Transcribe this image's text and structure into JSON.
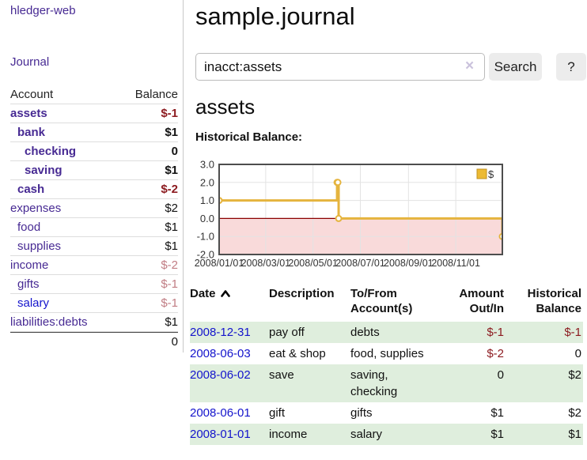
{
  "colors": {
    "purple": "#472a93",
    "blue": "#1414cc",
    "neg-strong": "#8c1a1f",
    "neg-muted": "#c17d84",
    "row-green": "#dfeedd",
    "divider": "#c8c8c8",
    "rowline": "#dddddd"
  },
  "sidebar": {
    "brand": "hledger-web",
    "nav": {
      "journal": "Journal"
    },
    "accounts": {
      "headers": {
        "account": "Account",
        "balance": "Balance"
      },
      "rows": [
        {
          "name": "assets",
          "depth": 0,
          "bold": true,
          "balance": "$-1",
          "balance_class": "neg-strong",
          "link": "purple"
        },
        {
          "name": "bank",
          "depth": 1,
          "bold": true,
          "balance": "$1",
          "balance_class": "",
          "link": "purple"
        },
        {
          "name": "checking",
          "depth": 2,
          "bold": true,
          "balance": "0",
          "balance_class": "",
          "link": "purple"
        },
        {
          "name": "saving",
          "depth": 2,
          "bold": true,
          "balance": "$1",
          "balance_class": "",
          "link": "purple"
        },
        {
          "name": "cash",
          "depth": 1,
          "bold": true,
          "balance": "$-2",
          "balance_class": "neg-strong",
          "link": "purple"
        },
        {
          "name": "expenses",
          "depth": 0,
          "bold": false,
          "balance": "$2",
          "balance_class": "",
          "link": "purple"
        },
        {
          "name": "food",
          "depth": 1,
          "bold": false,
          "balance": "$1",
          "balance_class": "",
          "link": "purple"
        },
        {
          "name": "supplies",
          "depth": 1,
          "bold": false,
          "balance": "$1",
          "balance_class": "",
          "link": "purple"
        },
        {
          "name": "income",
          "depth": 0,
          "bold": false,
          "balance": "$-2",
          "balance_class": "neg-muted",
          "link": "purple"
        },
        {
          "name": "gifts",
          "depth": 1,
          "bold": false,
          "balance": "$-1",
          "balance_class": "neg-muted",
          "link": "purple"
        },
        {
          "name": "salary",
          "depth": 1,
          "bold": false,
          "balance": "$-1",
          "balance_class": "neg-muted",
          "link": "blue"
        },
        {
          "name": "liabilities:debts",
          "depth": 0,
          "bold": false,
          "balance": "$1",
          "balance_class": "",
          "link": "purple"
        }
      ],
      "total": "0"
    }
  },
  "main": {
    "title": "sample.journal",
    "search": {
      "value": "inacct:assets",
      "clear_icon": "×",
      "button": "Search",
      "help_button": "?"
    },
    "account_heading": "assets",
    "chart_heading": "Historical Balance:",
    "register": {
      "headers": {
        "date": "Date",
        "description": "Description",
        "accounts": "To/From Account(s)",
        "amount": "Amount Out/In",
        "balance": "Historical Balance"
      },
      "sort": "ascending",
      "rows": [
        {
          "date": "2008-12-31",
          "description": "pay off",
          "accounts": "debts",
          "amount": "$-1",
          "amount_negative": true,
          "balance": "$-1",
          "balance_negative": true,
          "highlighted": true
        },
        {
          "date": "2008-06-03",
          "description": "eat & shop",
          "accounts": "food, supplies",
          "amount": "$-2",
          "amount_negative": true,
          "balance": "0",
          "balance_negative": false,
          "highlighted": false
        },
        {
          "date": "2008-06-02",
          "description": "save",
          "accounts": "saving, checking",
          "amount": "0",
          "amount_negative": false,
          "balance": "$2",
          "balance_negative": false,
          "highlighted": true
        },
        {
          "date": "2008-06-01",
          "description": "gift",
          "accounts": "gifts",
          "amount": "$1",
          "amount_negative": false,
          "balance": "$2",
          "balance_negative": false,
          "highlighted": false
        },
        {
          "date": "2008-01-01",
          "description": "income",
          "accounts": "salary",
          "amount": "$1",
          "amount_negative": false,
          "balance": "$1",
          "balance_negative": false,
          "highlighted": true
        }
      ]
    }
  },
  "chart_data": {
    "type": "line",
    "title": "Historical Balance:",
    "step": true,
    "series": [
      {
        "name": "$",
        "points": [
          [
            "2008-01-01",
            1
          ],
          [
            "2008-06-01",
            2
          ],
          [
            "2008-06-02",
            2
          ],
          [
            "2008-06-03",
            0
          ],
          [
            "2008-12-31",
            -1
          ]
        ]
      }
    ],
    "x_range": [
      "2008-01-01",
      "2008-12-31"
    ],
    "ylim": [
      -2,
      3
    ],
    "y_ticks": [
      3.0,
      2.0,
      1.0,
      0.0,
      -1.0,
      -2.0
    ],
    "x_ticks": [
      {
        "pos": "2008-01-01",
        "label": "2008/01/01"
      },
      {
        "pos": "2008-03-01",
        "label": "2008/03/01"
      },
      {
        "pos": "2008-05-01",
        "label": "2008/05/01"
      },
      {
        "pos": "2008-07-01",
        "label": "2008/07/01"
      },
      {
        "pos": "2008-09-01",
        "label": "2008/09/01"
      },
      {
        "pos": "2008-11-01",
        "label": "2008/11/01"
      }
    ],
    "grid": true,
    "legend_position": "top-right",
    "line_color": "#e5b43e",
    "legend_fill": "#ecba33",
    "legend_border": "#c09222",
    "negative_region_color": "#f9dada",
    "zero_line_color": "#8b0000",
    "grid_color": "#e3e3e3",
    "border_color": "#4d4d4d"
  }
}
